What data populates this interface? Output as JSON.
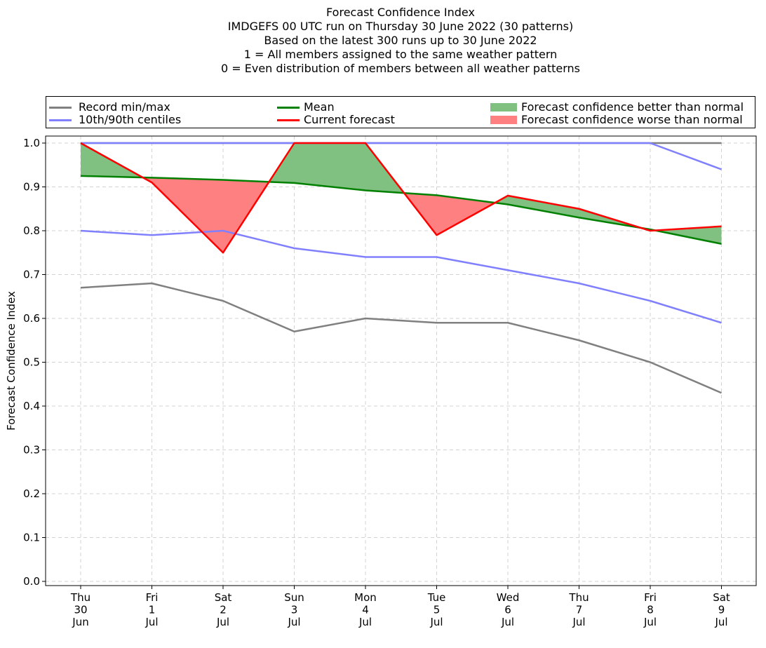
{
  "chart_data": {
    "type": "line",
    "title_lines": [
      "Forecast Confidence Index",
      "IMDGEFS 00 UTC run on Thursday 30 June 2022 (30 patterns)",
      "Based on the latest 300 runs up to 30 June 2022",
      "1 = All members assigned to the same weather pattern",
      "0 = Even distribution of members between all weather patterns"
    ],
    "ylabel": "Forecast Confidence Index",
    "ylim": [
      0,
      1.0
    ],
    "yticks": [
      "0.0",
      "0.1",
      "0.2",
      "0.3",
      "0.4",
      "0.5",
      "0.6",
      "0.7",
      "0.8",
      "0.9",
      "1.0"
    ],
    "grid": true,
    "legend_position": "top, above plot, 3 columns",
    "categories": [
      [
        "Thu",
        "30",
        "Jun"
      ],
      [
        "Fri",
        "1",
        "Jul"
      ],
      [
        "Sat",
        "2",
        "Jul"
      ],
      [
        "Sun",
        "3",
        "Jul"
      ],
      [
        "Mon",
        "4",
        "Jul"
      ],
      [
        "Tue",
        "5",
        "Jul"
      ],
      [
        "Wed",
        "6",
        "Jul"
      ],
      [
        "Thu",
        "7",
        "Jul"
      ],
      [
        "Fri",
        "8",
        "Jul"
      ],
      [
        "Sat",
        "9",
        "Jul"
      ]
    ],
    "series": [
      {
        "name": "Record min/max",
        "role": "record_min",
        "color": "#808080",
        "values": [
          0.67,
          0.68,
          0.64,
          0.57,
          0.6,
          0.59,
          0.59,
          0.55,
          0.5,
          0.43
        ]
      },
      {
        "name": "",
        "role": "record_max",
        "color": "#808080",
        "values": [
          1.0,
          1.0,
          1.0,
          1.0,
          1.0,
          1.0,
          1.0,
          1.0,
          1.0,
          1.0
        ]
      },
      {
        "name": "10th/90th centiles",
        "role": "p10",
        "color": "#8080ff",
        "values": [
          0.8,
          0.79,
          0.8,
          0.76,
          0.74,
          0.74,
          0.71,
          0.68,
          0.64,
          0.59
        ]
      },
      {
        "name": "",
        "role": "p90",
        "color": "#8080ff",
        "values": [
          1.0,
          1.0,
          1.0,
          1.0,
          1.0,
          1.0,
          1.0,
          1.0,
          1.0,
          0.94
        ]
      },
      {
        "name": "Mean",
        "role": "mean",
        "color": "#008000",
        "values": [
          0.925,
          0.921,
          0.916,
          0.909,
          0.892,
          0.881,
          0.86,
          0.83,
          0.803,
          0.77
        ]
      },
      {
        "name": "Current forecast",
        "role": "current",
        "color": "#ff0000",
        "values": [
          1.0,
          0.91,
          0.75,
          1.0,
          1.0,
          0.79,
          0.88,
          0.85,
          0.8,
          0.81
        ]
      }
    ],
    "fills": [
      {
        "name": "Forecast confidence better than normal",
        "color": "#80c080"
      },
      {
        "name": "Forecast confidence worse than normal",
        "color": "#ff8080"
      }
    ]
  }
}
